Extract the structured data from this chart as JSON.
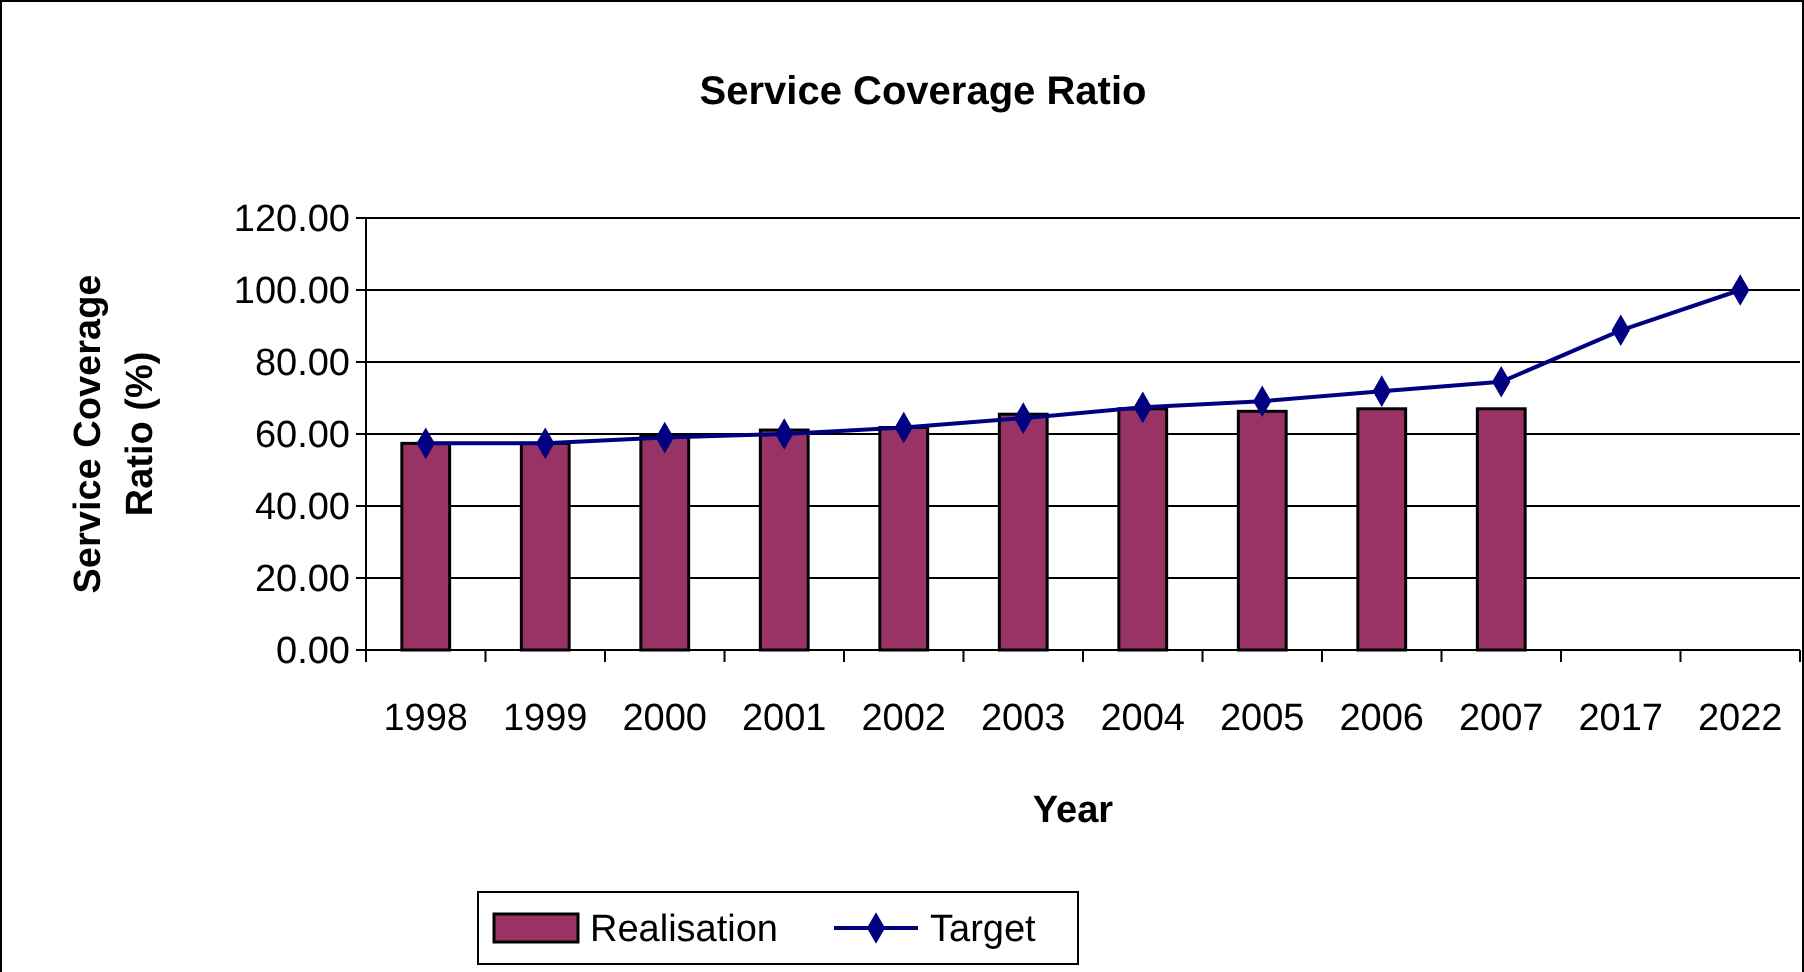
{
  "chart_data": {
    "type": "bar",
    "title": "Service Coverage Ratio",
    "xlabel": "Year",
    "ylabel": "Service Coverage Ratio (%)",
    "categories": [
      "1998",
      "1999",
      "2000",
      "2001",
      "2002",
      "2003",
      "2004",
      "2005",
      "2006",
      "2007",
      "2017",
      "2022"
    ],
    "series": [
      {
        "name": "Realisation",
        "color": "#993366",
        "values": [
          57.4,
          57.4,
          59.6,
          61.1,
          61.8,
          65.5,
          67.0,
          66.3,
          67.0,
          67.0,
          null,
          null
        ]
      },
      {
        "name": "Target",
        "type": "line",
        "color": "#000080",
        "marker": "diamond",
        "values": [
          57.4,
          57.4,
          59.0,
          60.0,
          61.8,
          64.4,
          67.4,
          69.1,
          71.9,
          74.5,
          88.8,
          100.0
        ]
      }
    ],
    "ylim": [
      0,
      120
    ],
    "yticks": [
      {
        "value": 0,
        "label": "0.00"
      },
      {
        "value": 20,
        "label": "20.00"
      },
      {
        "value": 40,
        "label": "40.00"
      },
      {
        "value": 60,
        "label": "60.00"
      },
      {
        "value": 80,
        "label": "80.00"
      },
      {
        "value": 100,
        "label": "100.00"
      },
      {
        "value": 120,
        "label": "120.00"
      }
    ],
    "grid": "y",
    "legend": "bottom"
  }
}
